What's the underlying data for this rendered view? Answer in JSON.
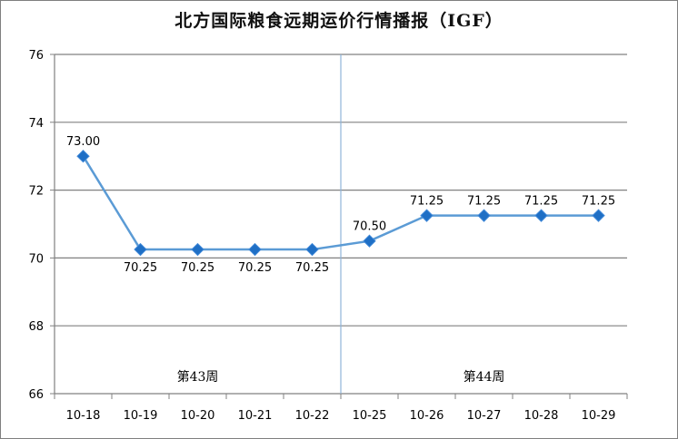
{
  "chart_data": {
    "type": "line",
    "title": "北方国际粮食远期运价行情播报（IGF）",
    "categories": [
      "10-18",
      "10-19",
      "10-20",
      "10-21",
      "10-22",
      "10-25",
      "10-26",
      "10-27",
      "10-28",
      "10-29"
    ],
    "series": [
      {
        "values": [
          73.0,
          70.25,
          70.25,
          70.25,
          70.25,
          70.5,
          71.25,
          71.25,
          71.25,
          71.25
        ]
      }
    ],
    "data_labels": [
      "73.00",
      "70.25",
      "70.25",
      "70.25",
      "70.25",
      "70.50",
      "71.25",
      "71.25",
      "71.25",
      "71.25"
    ],
    "ylim": [
      66,
      76
    ],
    "yticks": [
      66,
      68,
      70,
      72,
      74,
      76
    ],
    "grid": true,
    "week_groups": [
      {
        "label": "第43周",
        "categories": [
          "10-18",
          "10-19",
          "10-20",
          "10-21",
          "10-22"
        ]
      },
      {
        "label": "第44周",
        "categories": [
          "10-25",
          "10-26",
          "10-27",
          "10-28",
          "10-29"
        ]
      }
    ],
    "colors": {
      "line": "#5b9bd5",
      "marker": "#1f6fc5",
      "grid": "#808080",
      "divider": "#8fb4d9"
    }
  }
}
